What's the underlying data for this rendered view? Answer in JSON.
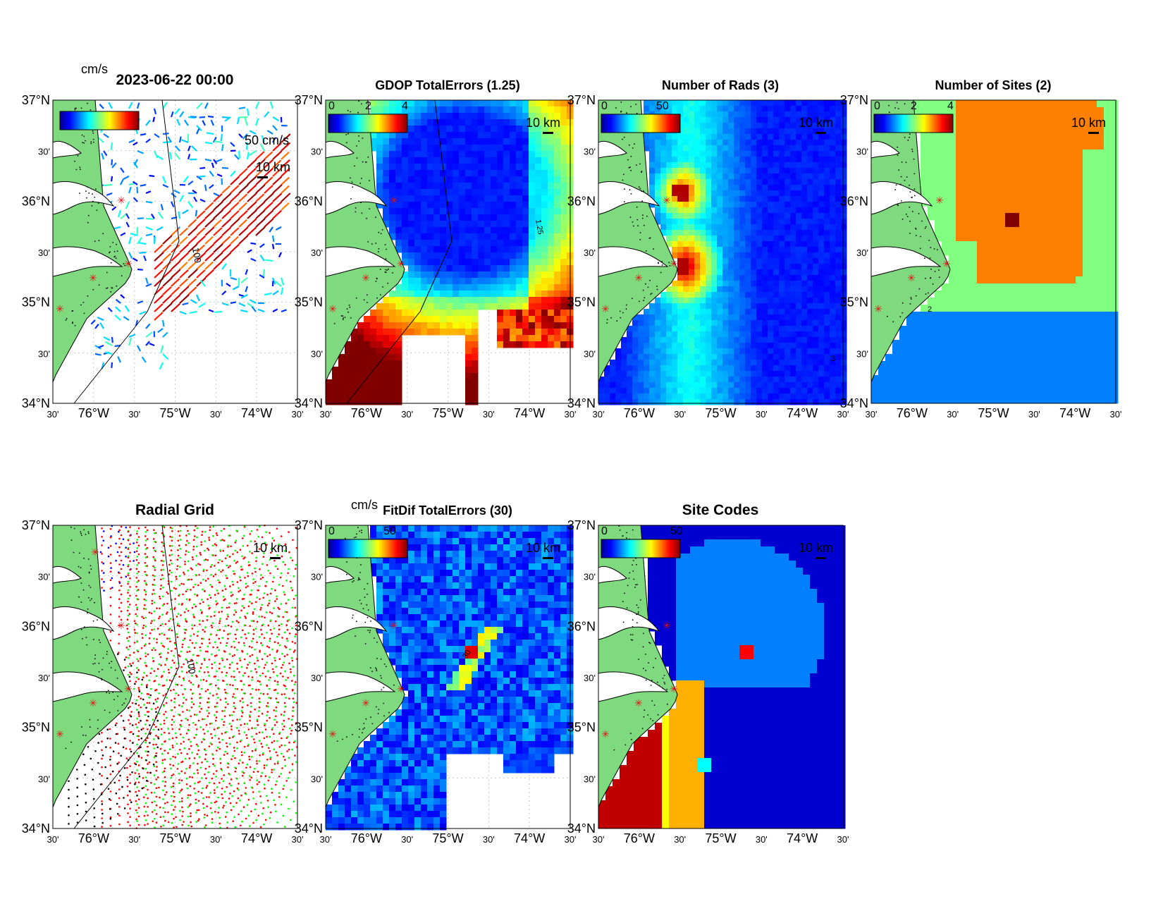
{
  "figure": {
    "timestamp": "2023-06-22 00:00",
    "panels": [
      {
        "id": "total-vectors",
        "title": "2023-06-22 00:00",
        "colorbar": {
          "unit": "cm/s",
          "ticks": []
        },
        "vector_scale_label": "50 cm/s",
        "scale_label": "10 km",
        "contour_label": "100"
      },
      {
        "id": "gdop",
        "title": "GDOP TotalErrors (1.25)",
        "colorbar": {
          "unit": "",
          "ticks": [
            "0",
            "2",
            "4"
          ]
        },
        "scale_label": "10 km",
        "contour_label": "1.25"
      },
      {
        "id": "num-rads",
        "title": "Number of Rads (3)",
        "colorbar": {
          "unit": "",
          "ticks": [
            "0",
            "50"
          ]
        },
        "scale_label": "10 km",
        "contour_label": "3"
      },
      {
        "id": "num-sites",
        "title": "Number of Sites (2)",
        "colorbar": {
          "unit": "",
          "ticks": [
            "0",
            "2",
            "4"
          ]
        },
        "scale_label": "10 km",
        "contour_label": "2"
      },
      {
        "id": "radial-grid",
        "title": "Radial Grid",
        "colorbar": null,
        "scale_label": "10 km",
        "contour_label": "100"
      },
      {
        "id": "fitdif",
        "title": "FitDif TotalErrors (30)",
        "colorbar": {
          "unit": "cm/s",
          "ticks": [
            "0",
            "50"
          ]
        },
        "scale_label": "10 km",
        "contour_label": "30"
      },
      {
        "id": "site-codes",
        "title": "Site Codes",
        "colorbar": {
          "unit": "",
          "ticks": [
            "0",
            "50"
          ]
        },
        "scale_label": "10 km"
      }
    ],
    "axes": {
      "lat_ticks": [
        "37°N",
        "30'",
        "36°N",
        "30'",
        "35°N",
        "30'",
        "34°N"
      ],
      "lon_ticks": [
        "30'",
        "76°W",
        "30'",
        "75°W",
        "30'",
        "74°W",
        "30'"
      ],
      "lat_range": [
        34,
        37
      ],
      "lon_range": [
        -76.5,
        -73.5
      ]
    },
    "colors": {
      "land": "#7fd97f",
      "site_marker": "#e01010",
      "jet": [
        "#00008f",
        "#0000ff",
        "#0080ff",
        "#00ffff",
        "#80ff80",
        "#ffff00",
        "#ff8000",
        "#ff0000",
        "#800000"
      ]
    }
  }
}
